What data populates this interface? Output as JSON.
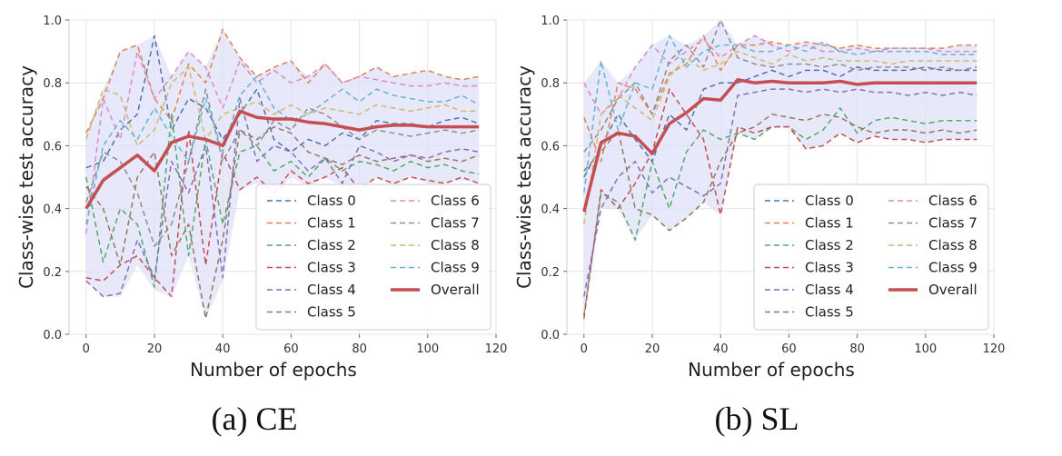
{
  "figure": {
    "captions": [
      "(a) CE",
      "(b) SL"
    ]
  },
  "colors": {
    "Class 0": "#4c72b0",
    "Class 1": "#dd8452",
    "Class 2": "#55a868",
    "Class 3": "#c44e52",
    "Class 4": "#8172b3",
    "Class 5": "#937860",
    "Class 6": "#da8bc3",
    "Class 7": "#8c8c8c",
    "Class 8": "#ccb974",
    "Class 9": "#64b5cd",
    "Overall": "#c44e52",
    "band": "#e0e0fa"
  },
  "chart_data": [
    {
      "type": "line",
      "caption": "(a) CE",
      "xlabel": "Number of epochs",
      "ylabel": "Class-wise test accuracy",
      "xlim": [
        -5,
        120
      ],
      "ylim": [
        0.0,
        1.0
      ],
      "xticks": [
        0,
        20,
        40,
        60,
        80,
        100,
        120
      ],
      "yticks": [
        0.0,
        0.2,
        0.4,
        0.6,
        0.8,
        1.0
      ],
      "grid": true,
      "legend": "lower-right",
      "x": [
        0,
        5,
        10,
        15,
        20,
        25,
        30,
        35,
        40,
        45,
        50,
        55,
        60,
        65,
        70,
        75,
        80,
        85,
        90,
        95,
        100,
        105,
        110,
        115
      ],
      "series": [
        {
          "name": "Class 0",
          "values": [
            0.53,
            0.55,
            0.65,
            0.7,
            0.95,
            0.65,
            0.75,
            0.72,
            0.62,
            0.7,
            0.78,
            0.62,
            0.58,
            0.62,
            0.6,
            0.64,
            0.62,
            0.68,
            0.67,
            0.67,
            0.66,
            0.68,
            0.69,
            0.67
          ]
        },
        {
          "name": "Class 1",
          "values": [
            0.64,
            0.75,
            0.9,
            0.92,
            0.75,
            0.68,
            0.86,
            0.8,
            0.97,
            0.88,
            0.82,
            0.85,
            0.87,
            0.8,
            0.86,
            0.8,
            0.82,
            0.85,
            0.82,
            0.83,
            0.84,
            0.82,
            0.81,
            0.82
          ]
        },
        {
          "name": "Class 2",
          "values": [
            0.5,
            0.23,
            0.4,
            0.35,
            0.15,
            0.7,
            0.25,
            0.62,
            0.35,
            0.58,
            0.6,
            0.52,
            0.55,
            0.5,
            0.56,
            0.52,
            0.55,
            0.54,
            0.52,
            0.55,
            0.53,
            0.54,
            0.52,
            0.51
          ]
        },
        {
          "name": "Class 3",
          "values": [
            0.18,
            0.17,
            0.22,
            0.25,
            0.18,
            0.12,
            0.65,
            0.22,
            0.58,
            0.46,
            0.5,
            0.45,
            0.52,
            0.48,
            0.5,
            0.53,
            0.46,
            0.5,
            0.48,
            0.5,
            0.49,
            0.48,
            0.5,
            0.48
          ]
        },
        {
          "name": "Class 4",
          "values": [
            0.17,
            0.12,
            0.13,
            0.3,
            0.18,
            0.55,
            0.45,
            0.6,
            0.18,
            0.75,
            0.55,
            0.6,
            0.58,
            0.52,
            0.56,
            0.48,
            0.6,
            0.58,
            0.55,
            0.57,
            0.56,
            0.58,
            0.59,
            0.58
          ]
        },
        {
          "name": "Class 5",
          "values": [
            0.47,
            0.4,
            0.22,
            0.5,
            0.58,
            0.25,
            0.35,
            0.05,
            0.3,
            0.65,
            0.62,
            0.66,
            0.64,
            0.58,
            0.56,
            0.54,
            0.57,
            0.55,
            0.56,
            0.57,
            0.55,
            0.56,
            0.55,
            0.57
          ]
        },
        {
          "name": "Class 6",
          "values": [
            0.32,
            0.75,
            0.62,
            0.9,
            0.75,
            0.82,
            0.9,
            0.85,
            0.72,
            0.87,
            0.8,
            0.84,
            0.8,
            0.82,
            0.86,
            0.8,
            0.82,
            0.81,
            0.8,
            0.79,
            0.79,
            0.8,
            0.79,
            0.79
          ]
        },
        {
          "name": "Class 7",
          "values": [
            0.42,
            0.58,
            0.55,
            0.45,
            0.28,
            0.35,
            0.55,
            0.78,
            0.55,
            0.65,
            0.6,
            0.68,
            0.65,
            0.72,
            0.7,
            0.66,
            0.62,
            0.65,
            0.64,
            0.63,
            0.64,
            0.65,
            0.64,
            0.65
          ]
        },
        {
          "name": "Class 8",
          "values": [
            0.62,
            0.78,
            0.76,
            0.6,
            0.65,
            0.8,
            0.85,
            0.62,
            0.7,
            0.72,
            0.74,
            0.7,
            0.73,
            0.7,
            0.72,
            0.71,
            0.7,
            0.73,
            0.72,
            0.71,
            0.72,
            0.73,
            0.71,
            0.71
          ]
        },
        {
          "name": "Class 9",
          "values": [
            0.35,
            0.6,
            0.68,
            0.62,
            0.72,
            0.63,
            0.55,
            0.75,
            0.58,
            0.76,
            0.82,
            0.72,
            0.68,
            0.7,
            0.74,
            0.78,
            0.74,
            0.78,
            0.76,
            0.75,
            0.74,
            0.74,
            0.76,
            0.73
          ]
        },
        {
          "name": "Overall",
          "values": [
            0.4,
            0.49,
            0.53,
            0.57,
            0.52,
            0.61,
            0.63,
            0.62,
            0.6,
            0.71,
            0.69,
            0.685,
            0.685,
            0.675,
            0.67,
            0.66,
            0.65,
            0.66,
            0.665,
            0.665,
            0.66,
            0.66,
            0.66,
            0.66
          ]
        }
      ],
      "band": {
        "lower": [
          0.17,
          0.12,
          0.12,
          0.22,
          0.14,
          0.12,
          0.25,
          0.05,
          0.17,
          0.46,
          0.48,
          0.44,
          0.5,
          0.47,
          0.5,
          0.47,
          0.45,
          0.5,
          0.47,
          0.5,
          0.48,
          0.48,
          0.49,
          0.48
        ],
        "upper": [
          0.64,
          0.78,
          0.9,
          0.92,
          0.95,
          0.82,
          0.9,
          0.85,
          0.97,
          0.88,
          0.82,
          0.85,
          0.87,
          0.82,
          0.86,
          0.8,
          0.82,
          0.85,
          0.82,
          0.83,
          0.84,
          0.82,
          0.81,
          0.82
        ]
      }
    },
    {
      "type": "line",
      "caption": "(b) SL",
      "xlabel": "Number of epochs",
      "ylabel": "Class-wise test accuracy",
      "xlim": [
        -5,
        120
      ],
      "ylim": [
        0.0,
        1.0
      ],
      "xticks": [
        0,
        20,
        40,
        60,
        80,
        100,
        120
      ],
      "yticks": [
        0.0,
        0.2,
        0.4,
        0.6,
        0.8,
        1.0
      ],
      "grid": true,
      "legend": "lower-right",
      "x": [
        0,
        5,
        10,
        15,
        20,
        25,
        30,
        35,
        40,
        45,
        50,
        55,
        60,
        65,
        70,
        75,
        80,
        85,
        90,
        95,
        100,
        105,
        110,
        115
      ],
      "series": [
        {
          "name": "Class 0",
          "values": [
            0.5,
            0.6,
            0.7,
            0.62,
            0.55,
            0.7,
            0.65,
            0.78,
            0.8,
            0.8,
            0.82,
            0.84,
            0.82,
            0.84,
            0.84,
            0.82,
            0.85,
            0.84,
            0.84,
            0.84,
            0.85,
            0.84,
            0.84,
            0.84
          ]
        },
        {
          "name": "Class 1",
          "values": [
            0.69,
            0.55,
            0.8,
            0.78,
            0.7,
            0.83,
            0.86,
            0.95,
            0.84,
            0.92,
            0.92,
            0.93,
            0.92,
            0.93,
            0.92,
            0.91,
            0.92,
            0.91,
            0.91,
            0.91,
            0.91,
            0.91,
            0.92,
            0.92
          ]
        },
        {
          "name": "Class 2",
          "values": [
            0.06,
            0.45,
            0.42,
            0.3,
            0.55,
            0.4,
            0.58,
            0.65,
            0.62,
            0.64,
            0.62,
            0.66,
            0.66,
            0.62,
            0.65,
            0.72,
            0.64,
            0.68,
            0.69,
            0.68,
            0.67,
            0.68,
            0.68,
            0.68
          ]
        },
        {
          "name": "Class 3",
          "values": [
            0.05,
            0.46,
            0.4,
            0.48,
            0.58,
            0.78,
            0.7,
            0.62,
            0.38,
            0.66,
            0.64,
            0.66,
            0.66,
            0.59,
            0.6,
            0.64,
            0.61,
            0.63,
            0.62,
            0.62,
            0.61,
            0.62,
            0.62,
            0.62
          ]
        },
        {
          "name": "Class 4",
          "values": [
            0.12,
            0.4,
            0.5,
            0.55,
            0.45,
            0.5,
            0.47,
            0.44,
            0.48,
            0.76,
            0.77,
            0.78,
            0.78,
            0.77,
            0.78,
            0.77,
            0.78,
            0.77,
            0.77,
            0.76,
            0.77,
            0.76,
            0.77,
            0.76
          ]
        },
        {
          "name": "Class 5",
          "values": [
            0.52,
            0.58,
            0.65,
            0.4,
            0.38,
            0.33,
            0.37,
            0.42,
            0.55,
            0.64,
            0.66,
            0.7,
            0.69,
            0.68,
            0.7,
            0.69,
            0.66,
            0.64,
            0.65,
            0.65,
            0.64,
            0.65,
            0.64,
            0.65
          ]
        },
        {
          "name": "Class 6",
          "values": [
            0.8,
            0.7,
            0.75,
            0.85,
            0.92,
            0.86,
            0.9,
            0.94,
            0.88,
            0.92,
            0.95,
            0.92,
            0.9,
            0.92,
            0.9,
            0.9,
            0.91,
            0.9,
            0.91,
            0.91,
            0.91,
            0.9,
            0.9,
            0.9
          ]
        },
        {
          "name": "Class 7",
          "values": [
            0.58,
            0.65,
            0.75,
            0.8,
            0.7,
            0.87,
            0.92,
            0.85,
            1.0,
            0.88,
            0.86,
            0.85,
            0.86,
            0.86,
            0.85,
            0.86,
            0.84,
            0.85,
            0.85,
            0.85,
            0.84,
            0.85,
            0.84,
            0.85
          ]
        },
        {
          "name": "Class 8",
          "values": [
            0.35,
            0.7,
            0.76,
            0.72,
            0.68,
            0.82,
            0.88,
            0.84,
            0.86,
            0.9,
            0.88,
            0.86,
            0.89,
            0.87,
            0.88,
            0.87,
            0.87,
            0.87,
            0.86,
            0.87,
            0.87,
            0.87,
            0.87,
            0.87
          ]
        },
        {
          "name": "Class 9",
          "values": [
            0.45,
            0.87,
            0.65,
            0.8,
            0.78,
            0.95,
            0.85,
            0.9,
            0.92,
            0.92,
            0.9,
            0.9,
            0.92,
            0.9,
            0.93,
            0.9,
            0.89,
            0.9,
            0.9,
            0.9,
            0.9,
            0.89,
            0.89,
            0.89
          ]
        },
        {
          "name": "Overall",
          "values": [
            0.39,
            0.61,
            0.64,
            0.63,
            0.575,
            0.67,
            0.705,
            0.75,
            0.745,
            0.81,
            0.8,
            0.805,
            0.8,
            0.8,
            0.8,
            0.805,
            0.795,
            0.8,
            0.8,
            0.8,
            0.8,
            0.8,
            0.8,
            0.8
          ]
        }
      ],
      "band": {
        "lower": [
          0.05,
          0.4,
          0.4,
          0.3,
          0.38,
          0.33,
          0.37,
          0.42,
          0.38,
          0.64,
          0.62,
          0.66,
          0.66,
          0.59,
          0.6,
          0.64,
          0.61,
          0.63,
          0.62,
          0.62,
          0.61,
          0.62,
          0.62,
          0.62
        ],
        "upper": [
          0.8,
          0.87,
          0.8,
          0.85,
          0.92,
          0.95,
          0.92,
          0.95,
          1.0,
          0.92,
          0.95,
          0.93,
          0.92,
          0.93,
          0.93,
          0.91,
          0.92,
          0.91,
          0.91,
          0.91,
          0.91,
          0.91,
          0.92,
          0.92
        ]
      }
    }
  ]
}
